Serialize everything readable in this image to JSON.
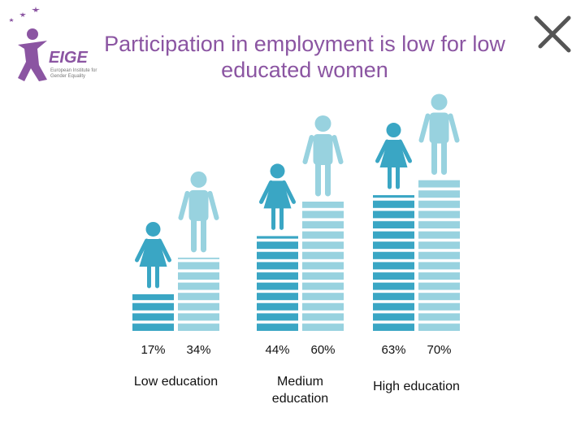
{
  "logo": {
    "name": "EIGE",
    "tagline": "European Institute for Gender Equality"
  },
  "chart_data": {
    "type": "pictograph",
    "title": "Participation in employment is low for low educated women",
    "categories": [
      "Low education",
      "Medium education",
      "High education"
    ],
    "series": [
      {
        "color": "#3aa6c4",
        "values": [
          17,
          44,
          63
        ],
        "value_labels": [
          "17%",
          "44%",
          "63%"
        ]
      },
      {
        "color": "#98d2df",
        "values": [
          34,
          60,
          70
        ],
        "value_labels": [
          "34%",
          "60%",
          "70%"
        ]
      }
    ]
  }
}
